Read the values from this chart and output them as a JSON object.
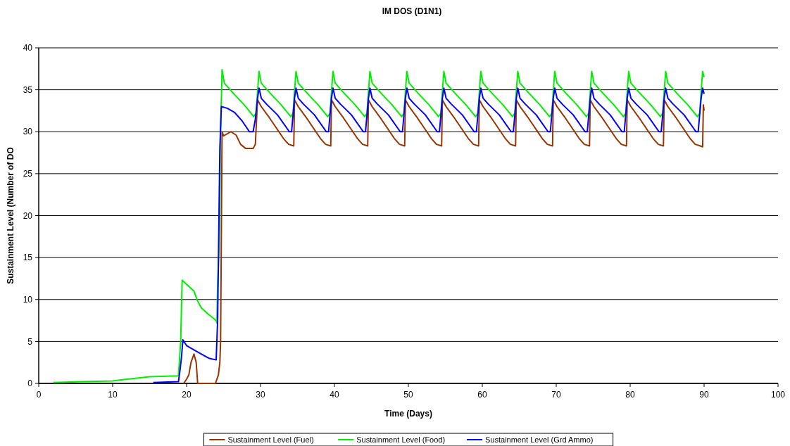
{
  "chart_data": {
    "type": "line",
    "title": "IM DOS (D1N1)",
    "xlabel": "Time (Days)",
    "ylabel": "Sustainment Level (Number of DO",
    "xlim": [
      0,
      100
    ],
    "xticks": [
      0,
      10,
      20,
      30,
      40,
      50,
      60,
      70,
      80,
      90,
      100
    ],
    "ylim": [
      0,
      40
    ],
    "yticks": [
      0,
      5,
      10,
      15,
      20,
      25,
      30,
      35,
      40
    ],
    "grid": "y",
    "legend": "bottom",
    "marker": "none",
    "line_style": "solid",
    "series": [
      {
        "name": "Sustainment Level (Fuel)",
        "color": "#993300",
        "x": [
          19.6,
          20,
          20.3,
          20.6,
          21,
          21.3,
          21.5,
          23.9,
          24.3,
          24.5,
          24.6,
          24.8,
          25,
          26,
          26.7,
          27.3,
          28,
          29,
          29.3,
          29.6,
          30.1,
          31.1,
          32.1,
          33.1,
          33.8,
          34.5,
          34.6,
          35.1,
          36.1,
          37.1,
          38.1,
          38.8,
          39.5,
          39.6,
          40.1,
          41.1,
          42.1,
          43.1,
          43.8,
          44.5,
          44.6,
          45.1,
          46.1,
          47.1,
          48.1,
          48.8,
          49.5,
          49.6,
          50.1,
          51.1,
          52.1,
          53.1,
          53.8,
          54.5,
          54.6,
          55.1,
          56.1,
          57.1,
          58.1,
          58.8,
          59.5,
          59.6,
          60.1,
          61.1,
          62.1,
          63.1,
          63.8,
          64.5,
          64.6,
          65.1,
          66.1,
          67.1,
          68.1,
          68.8,
          69.5,
          69.6,
          70.1,
          71.1,
          72.1,
          73.1,
          73.8,
          74.5,
          74.6,
          75.1,
          76.1,
          77.1,
          78.1,
          78.8,
          79.5,
          79.6,
          80.1,
          81.1,
          82.1,
          83.1,
          83.8,
          84.5,
          84.6,
          85.1,
          86.1,
          87.1,
          88.1,
          88.8,
          89.5,
          89.8,
          89.9,
          90
        ],
        "values": [
          0,
          0.5,
          1,
          2.5,
          3.5,
          2.5,
          0,
          0,
          1,
          2.5,
          5,
          30,
          29.5,
          30,
          29.6,
          28.5,
          28,
          28,
          28.5,
          33.8,
          33,
          31.8,
          30.5,
          29.2,
          28.5,
          28.3,
          33.8,
          33,
          31.8,
          30.5,
          29.2,
          28.5,
          28.3,
          33.8,
          33,
          31.8,
          30.5,
          29.2,
          28.5,
          28.3,
          33.8,
          33,
          31.8,
          30.5,
          29.2,
          28.5,
          28.3,
          33.8,
          33,
          31.8,
          30.5,
          29.2,
          28.5,
          28.3,
          33.8,
          33,
          31.8,
          30.5,
          29.2,
          28.5,
          28.3,
          33.8,
          33,
          31.8,
          30.5,
          29.2,
          28.5,
          28.3,
          33.8,
          33,
          31.8,
          30.5,
          29.2,
          28.5,
          28.3,
          33.8,
          33,
          31.8,
          30.5,
          29.2,
          28.5,
          28.3,
          33.8,
          33,
          31.8,
          30.5,
          29.2,
          28.5,
          28.3,
          33.8,
          33,
          31.8,
          30.5,
          29.2,
          28.5,
          28.3,
          33.8,
          33,
          31.8,
          30.5,
          29.2,
          28.5,
          28.3,
          28.2,
          33.2,
          32.5
        ]
      },
      {
        "name": "Sustainment Level (Food)",
        "color": "#00ee00",
        "x": [
          2,
          6,
          10,
          12,
          15,
          18.9,
          19.2,
          19.4,
          20,
          21,
          21.5,
          22,
          23,
          24,
          24.1,
          24.2,
          24.4,
          24.6,
          24.8,
          25.1,
          26.3,
          27.8,
          29.1,
          29.4,
          29.6,
          29.8,
          30.1,
          31.3,
          32.8,
          34.1,
          34.4,
          34.6,
          34.8,
          35.1,
          36.3,
          37.8,
          39.1,
          39.4,
          39.6,
          39.8,
          40.1,
          41.3,
          42.8,
          44.1,
          44.4,
          44.6,
          44.8,
          45.1,
          46.3,
          47.8,
          49.1,
          49.4,
          49.6,
          49.8,
          50.1,
          51.3,
          52.8,
          54.1,
          54.4,
          54.6,
          54.8,
          55.1,
          56.3,
          57.8,
          59.1,
          59.4,
          59.6,
          59.8,
          60.1,
          61.3,
          62.8,
          64.1,
          64.4,
          64.6,
          64.8,
          65.1,
          66.3,
          67.8,
          69.1,
          69.4,
          69.6,
          69.8,
          70.1,
          71.3,
          72.8,
          74.1,
          74.4,
          74.6,
          74.8,
          75.1,
          76.3,
          77.8,
          79.1,
          79.4,
          79.6,
          79.8,
          80.1,
          81.3,
          82.8,
          84.1,
          84.4,
          84.6,
          84.8,
          85.1,
          86.3,
          87.8,
          89.1,
          89.4,
          89.6,
          89.8,
          90
        ],
        "values": [
          0.1,
          0.2,
          0.3,
          0.5,
          0.8,
          0.9,
          5,
          12.3,
          11.8,
          11,
          9.8,
          9,
          8.2,
          7.5,
          7.2,
          12,
          16,
          30,
          37.4,
          35.8,
          34.6,
          33.2,
          31.8,
          32.2,
          34.8,
          37.2,
          35.8,
          34.6,
          33.2,
          31.8,
          32.2,
          34.8,
          37.2,
          35.8,
          34.6,
          33.2,
          31.8,
          32.2,
          34.8,
          37.2,
          35.8,
          34.6,
          33.2,
          31.8,
          32.2,
          34.8,
          37.2,
          35.8,
          34.6,
          33.2,
          31.8,
          32.2,
          34.8,
          37.2,
          35.8,
          34.6,
          33.2,
          31.8,
          32.2,
          34.8,
          37.2,
          35.8,
          34.6,
          33.2,
          31.8,
          32.2,
          34.8,
          37.2,
          35.8,
          34.6,
          33.2,
          31.8,
          32.2,
          34.8,
          37.2,
          35.8,
          34.6,
          33.2,
          31.8,
          32.2,
          34.8,
          37.2,
          35.8,
          34.6,
          33.2,
          31.8,
          32.2,
          34.8,
          37.2,
          35.8,
          34.6,
          33.2,
          31.8,
          32.2,
          34.8,
          37.2,
          35.8,
          34.6,
          33.2,
          31.8,
          32.2,
          34.8,
          37.2,
          35.8,
          34.6,
          33.2,
          31.8,
          32.2,
          34.8,
          37.2,
          36.5
        ]
      },
      {
        "name": "Sustainment Level (Grd Ammo)",
        "color": "#0000ff",
        "x": [
          15.5,
          18.9,
          19.1,
          19.3,
          19.5,
          20,
          21,
          22,
          23,
          24,
          24.2,
          24.5,
          24.7,
          25.5,
          26.5,
          27.5,
          28.5,
          29,
          29.3,
          29.6,
          29.8,
          30.1,
          30.8,
          32.3,
          33.9,
          34.2,
          34.4,
          34.6,
          34.8,
          35.1,
          35.8,
          37.3,
          38.9,
          39.2,
          39.4,
          39.6,
          39.8,
          40.1,
          40.8,
          42.3,
          43.9,
          44.2,
          44.4,
          44.6,
          44.8,
          45.1,
          45.8,
          47.3,
          48.9,
          49.2,
          49.4,
          49.6,
          49.8,
          50.1,
          50.8,
          52.3,
          53.9,
          54.2,
          54.4,
          54.6,
          54.8,
          55.1,
          55.8,
          57.3,
          58.9,
          59.2,
          59.4,
          59.6,
          59.8,
          60.1,
          60.8,
          62.3,
          63.9,
          64.2,
          64.4,
          64.6,
          64.8,
          65.1,
          65.8,
          67.3,
          68.9,
          69.2,
          69.4,
          69.6,
          69.8,
          70.1,
          70.8,
          72.3,
          73.9,
          74.2,
          74.4,
          74.6,
          74.8,
          75.1,
          75.8,
          77.3,
          78.9,
          79.2,
          79.4,
          79.6,
          79.8,
          80.1,
          80.8,
          82.3,
          83.9,
          84.2,
          84.4,
          84.6,
          84.8,
          85.1,
          85.8,
          87.3,
          88.9,
          89.2,
          89.4,
          89.6,
          89.8,
          90
        ],
        "values": [
          0.1,
          0.2,
          1.5,
          3,
          5.2,
          4.5,
          4,
          3.5,
          3,
          2.8,
          7.5,
          28,
          33,
          32.8,
          32.3,
          31.3,
          30,
          30,
          31.5,
          34,
          35.2,
          34,
          33.3,
          32,
          30,
          30,
          32,
          34,
          35.2,
          34,
          33.3,
          32,
          30,
          30,
          32,
          34,
          35.2,
          34,
          33.3,
          32,
          30,
          30,
          32,
          34,
          35.2,
          34,
          33.3,
          32,
          30,
          30,
          32,
          34,
          35.2,
          34,
          33.3,
          32,
          30,
          30,
          32,
          34,
          35.2,
          34,
          33.3,
          32,
          30,
          30,
          32,
          34,
          35.2,
          34,
          33.3,
          32,
          30,
          30,
          32,
          34,
          35.2,
          34,
          33.3,
          32,
          30,
          30,
          32,
          34,
          35.2,
          34,
          33.3,
          32,
          30,
          30,
          32,
          34,
          35.2,
          34,
          33.3,
          32,
          30,
          30,
          32,
          34,
          35.2,
          34,
          33.3,
          32,
          30,
          30,
          32,
          34,
          35.2,
          34,
          33.3,
          32,
          30,
          30,
          32,
          34,
          35.2,
          34.5
        ]
      }
    ]
  }
}
